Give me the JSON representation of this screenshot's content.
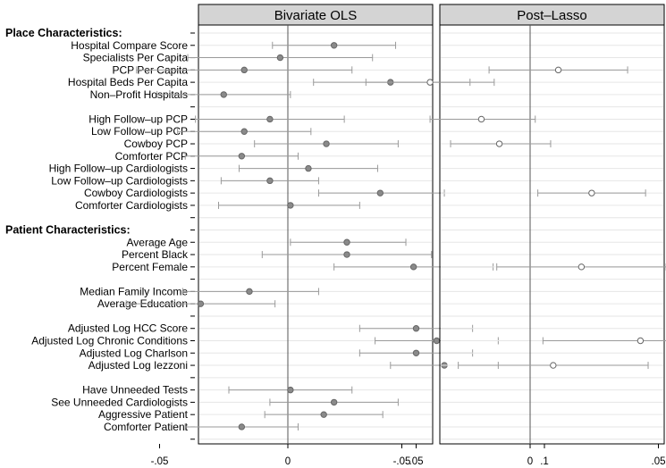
{
  "chart_data": {
    "type": "scatter",
    "subtype": "coefficient-plot",
    "panels": [
      {
        "title": "Bivariate OLS",
        "key": "ols"
      },
      {
        "title": "Post–Lasso",
        "key": "lasso"
      }
    ],
    "xlim": [
      -0.08,
      0.1
    ],
    "xticks": [
      -0.05,
      0,
      0.05,
      0.1
    ],
    "xtick_labels": [
      "-.05",
      "0",
      ".05",
      ".1"
    ],
    "reference_line": 0,
    "grid": true,
    "marker_color_ols": "#8a8a8a",
    "marker_color_lasso": "#ffffff",
    "ci_color": "#9a9a9a",
    "rows": [
      {
        "label": "Place Characteristics:",
        "header": true
      },
      {
        "label": "Hospital Compare Score",
        "ols": [
          0.018,
          -0.006,
          0.042
        ]
      },
      {
        "label": "Specialists Per Capita",
        "ols": [
          -0.003,
          -0.039,
          0.033
        ]
      },
      {
        "label": "PCP Per Capita",
        "ols": [
          -0.017,
          -0.059,
          0.025
        ],
        "lasso": [
          0.011,
          -0.016,
          0.038
        ]
      },
      {
        "label": "Hospital Beds Per Capita",
        "ols": [
          0.04,
          0.01,
          0.071
        ],
        "lasso": [
          -0.039,
          -0.064,
          -0.014
        ]
      },
      {
        "label": "Non–Profit Hospitals",
        "ols": [
          -0.025,
          -0.051,
          0.001
        ]
      },
      {
        "label": "",
        "spacer": true
      },
      {
        "label": "High Follow–up PCP",
        "ols": [
          -0.007,
          -0.036,
          0.022
        ],
        "lasso": [
          -0.019,
          -0.039,
          0.002
        ]
      },
      {
        "label": "Low Follow–up PCP",
        "ols": [
          -0.017,
          -0.043,
          0.009
        ]
      },
      {
        "label": "Cowboy PCP",
        "ols": [
          0.015,
          -0.013,
          0.043
        ],
        "lasso": [
          -0.012,
          -0.031,
          0.008
        ]
      },
      {
        "label": "Comforter PCP",
        "ols": [
          -0.018,
          -0.04,
          0.004
        ]
      },
      {
        "label": "High Follow–up Cardiologists",
        "ols": [
          0.008,
          -0.019,
          0.035
        ]
      },
      {
        "label": "Low Follow–up Cardiologists",
        "ols": [
          -0.007,
          -0.026,
          0.012
        ]
      },
      {
        "label": "Cowboy Cardiologists",
        "ols": [
          0.036,
          0.012,
          0.061
        ],
        "lasso": [
          0.024,
          0.003,
          0.045
        ]
      },
      {
        "label": "Comforter Cardiologists",
        "ols": [
          0.001,
          -0.027,
          0.028
        ]
      },
      {
        "label": "",
        "spacer": true
      },
      {
        "label": "Patient Characteristics:",
        "header": true
      },
      {
        "label": "Average Age",
        "ols": [
          0.023,
          0.001,
          0.046
        ]
      },
      {
        "label": "Percent Black",
        "ols": [
          0.023,
          -0.01,
          0.056
        ]
      },
      {
        "label": "Percent Female",
        "ols": [
          0.049,
          0.018,
          0.08
        ],
        "lasso": [
          0.02,
          -0.013,
          0.053
        ]
      },
      {
        "label": "",
        "spacer": true
      },
      {
        "label": "Median Family Income",
        "ols": [
          -0.015,
          -0.041,
          0.012
        ]
      },
      {
        "label": "Average Education",
        "ols": [
          -0.034,
          -0.063,
          -0.005
        ]
      },
      {
        "label": "",
        "spacer": true
      },
      {
        "label": "Adjusted Log HCC Score",
        "ols": [
          0.05,
          0.028,
          0.072
        ]
      },
      {
        "label": "Adjusted Log Chronic Conditions",
        "ols": [
          0.058,
          0.034,
          0.082
        ],
        "lasso": [
          0.043,
          0.005,
          0.082
        ]
      },
      {
        "label": "Adjusted Log Charlson",
        "ols": [
          0.05,
          0.028,
          0.072
        ]
      },
      {
        "label": "Adjusted Log Iezzoni",
        "ols": [
          0.061,
          0.04,
          0.082
        ],
        "lasso": [
          0.009,
          -0.028,
          0.046
        ]
      },
      {
        "label": "",
        "spacer": true
      },
      {
        "label": "Have Unneeded Tests",
        "ols": [
          0.001,
          -0.023,
          0.025
        ]
      },
      {
        "label": "See Unneeded Cardiologists",
        "ols": [
          0.018,
          -0.007,
          0.043
        ]
      },
      {
        "label": "Aggressive Patient",
        "ols": [
          0.014,
          -0.009,
          0.037
        ]
      },
      {
        "label": "Comforter Patient",
        "ols": [
          -0.018,
          -0.04,
          0.004
        ]
      },
      {
        "label": "",
        "spacer": true
      }
    ]
  }
}
